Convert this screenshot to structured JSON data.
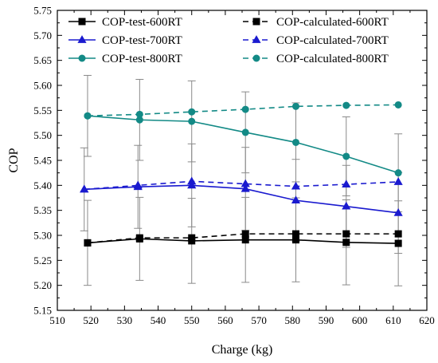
{
  "chart_data": {
    "type": "line",
    "title": "",
    "xlabel": "Charge (kg)",
    "ylabel": "COP",
    "xlim": [
      510,
      620
    ],
    "ylim": [
      5.15,
      5.75
    ],
    "xticks": [
      510,
      520,
      530,
      540,
      550,
      560,
      570,
      580,
      590,
      600,
      610,
      620
    ],
    "xtick_labels": [
      "510",
      "520",
      "530",
      "540",
      "550",
      "560",
      "570",
      "580",
      "590",
      "600",
      "610",
      "620"
    ],
    "yticks": [
      5.15,
      5.2,
      5.25,
      5.3,
      5.35,
      5.4,
      5.45,
      5.5,
      5.55,
      5.6,
      5.65,
      5.7,
      5.75
    ],
    "ytick_labels": [
      "5.15",
      "5.20",
      "5.25",
      "5.30",
      "5.35",
      "5.40",
      "5.45",
      "5.50",
      "5.55",
      "5.60",
      "5.65",
      "5.70",
      "5.75"
    ],
    "grid": false,
    "legend_position": "top",
    "series": [
      {
        "name": "COP-test-600RT",
        "color": "#000000",
        "marker": "square",
        "dashed": false,
        "x": [
          519,
          534.5,
          550,
          566,
          581,
          596,
          611.5
        ],
        "y": [
          5.285,
          5.293,
          5.289,
          5.291,
          5.291,
          5.286,
          5.284
        ],
        "error": [
          0.085,
          0.083,
          0.085,
          0.085,
          0.084,
          0.085,
          0.085
        ]
      },
      {
        "name": "COP-calculated-600RT",
        "color": "#000000",
        "marker": "square",
        "dashed": true,
        "x": [
          519,
          534.5,
          550,
          566,
          581,
          596,
          611.5
        ],
        "y": [
          5.285,
          5.295,
          5.295,
          5.303,
          5.303,
          5.303,
          5.303
        ],
        "error": null
      },
      {
        "name": "COP-test-700RT",
        "color": "#1a1acf",
        "marker": "triangle",
        "dashed": false,
        "x": [
          518,
          534,
          550,
          566,
          581,
          596,
          611.5
        ],
        "y": [
          5.392,
          5.397,
          5.4,
          5.393,
          5.37,
          5.358,
          5.345
        ],
        "error": [
          0.083,
          0.083,
          0.083,
          0.083,
          0.082,
          0.082,
          0.081
        ]
      },
      {
        "name": "COP-calculated-700RT",
        "color": "#1a1acf",
        "marker": "triangle",
        "dashed": true,
        "x": [
          518,
          534,
          550,
          566,
          581,
          596,
          611.5
        ],
        "y": [
          5.392,
          5.4,
          5.408,
          5.403,
          5.398,
          5.402,
          5.407
        ],
        "error": null
      },
      {
        "name": "COP-test-800RT",
        "color": "#138a86",
        "marker": "circle",
        "dashed": false,
        "x": [
          519,
          534.5,
          550,
          566,
          581,
          596,
          611.5
        ],
        "y": [
          5.539,
          5.531,
          5.528,
          5.506,
          5.486,
          5.458,
          5.425
        ],
        "error": [
          0.081,
          0.081,
          0.081,
          0.081,
          0.079,
          0.079,
          0.078
        ]
      },
      {
        "name": "COP-calculated-800RT",
        "color": "#138a86",
        "marker": "circle",
        "dashed": true,
        "x": [
          519,
          534.5,
          550,
          566,
          581,
          596,
          611.5
        ],
        "y": [
          5.539,
          5.542,
          5.547,
          5.552,
          5.558,
          5.56,
          5.561
        ],
        "error": null
      }
    ]
  }
}
